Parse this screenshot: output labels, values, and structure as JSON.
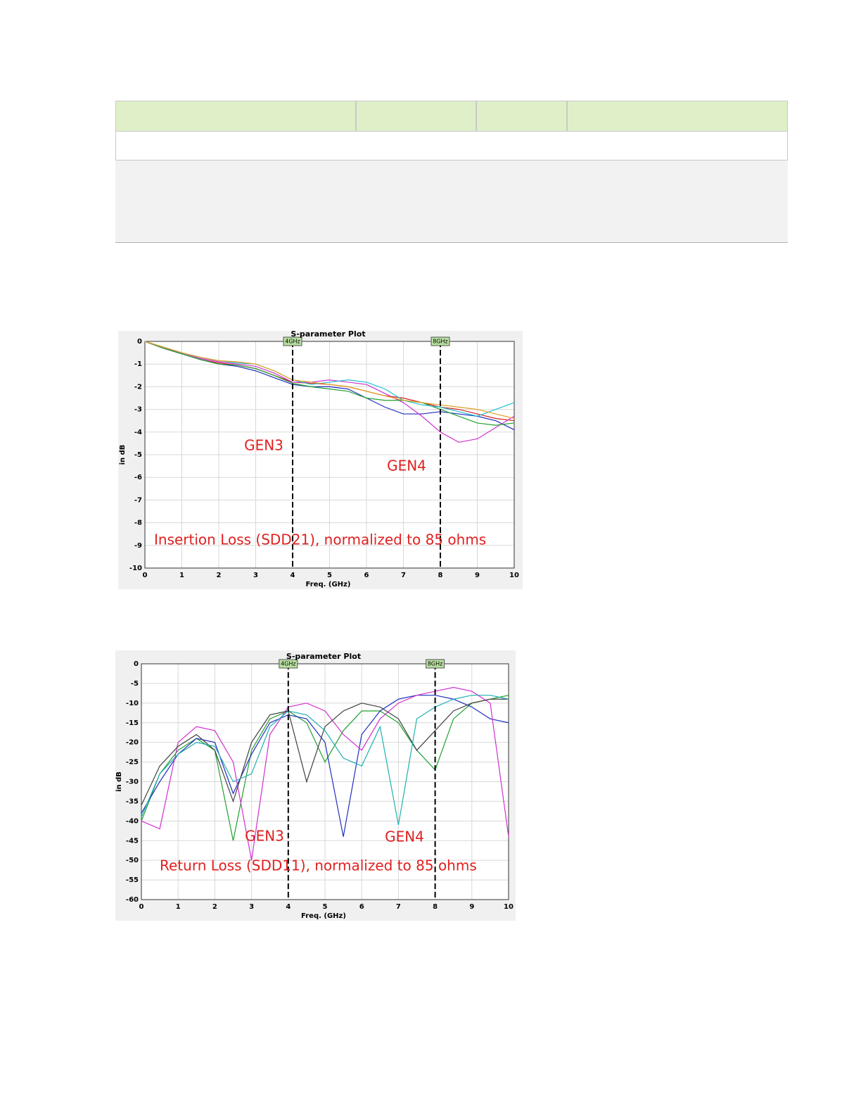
{
  "chart_data": [
    {
      "type": "line",
      "title": "S-parameter Plot",
      "xlabel": "Freq. (GHz)",
      "ylabel": "in dB",
      "xlim": [
        0,
        10
      ],
      "ylim": [
        -10,
        0
      ],
      "xticks": [
        0,
        1,
        2,
        3,
        4,
        5,
        6,
        7,
        8,
        9,
        10
      ],
      "yticks": [
        -10,
        -9,
        -8,
        -7,
        -6,
        -5,
        -4,
        -3,
        -2,
        -1,
        0
      ],
      "grid": true,
      "vlines": [
        {
          "value": 4,
          "label": "4GHz"
        },
        {
          "value": 8,
          "label": "8GHz"
        }
      ],
      "annotations": [
        "GEN3",
        "GEN4",
        "Insertion Loss (SDD21), normalized to 85 ohms"
      ],
      "x": [
        0,
        0.5,
        1,
        1.5,
        2,
        2.5,
        3,
        3.5,
        4,
        4.5,
        5,
        5.5,
        6,
        6.5,
        7,
        7.5,
        8,
        8.5,
        9,
        9.5,
        10
      ],
      "series": [
        {
          "color": "#d62020",
          "values": [
            0,
            -0.3,
            -0.55,
            -0.8,
            -0.95,
            -1.05,
            -1.2,
            -1.5,
            -1.8,
            -1.85,
            -1.9,
            -2.0,
            -2.2,
            -2.4,
            -2.5,
            -2.7,
            -2.9,
            -3.0,
            -3.2,
            -3.4,
            -3.5
          ]
        },
        {
          "color": "#2030c0",
          "values": [
            0,
            -0.3,
            -0.55,
            -0.8,
            -1.0,
            -1.1,
            -1.3,
            -1.6,
            -1.9,
            -2.0,
            -2.0,
            -2.1,
            -2.5,
            -2.9,
            -3.2,
            -3.2,
            -3.1,
            -3.2,
            -3.3,
            -3.5,
            -3.9
          ]
        },
        {
          "color": "#d030d0",
          "values": [
            0,
            -0.3,
            -0.5,
            -0.75,
            -0.9,
            -1.0,
            -1.1,
            -1.4,
            -1.8,
            -1.8,
            -1.7,
            -1.8,
            -1.9,
            -2.3,
            -2.7,
            -3.3,
            -4.0,
            -4.45,
            -4.3,
            -3.8,
            -3.3
          ]
        },
        {
          "color": "#20a030",
          "values": [
            0,
            -0.3,
            -0.55,
            -0.8,
            -1.0,
            -1.05,
            -1.2,
            -1.5,
            -1.85,
            -2.0,
            -2.1,
            -2.2,
            -2.5,
            -2.6,
            -2.6,
            -2.7,
            -3.0,
            -3.3,
            -3.6,
            -3.7,
            -3.6
          ]
        },
        {
          "color": "#20c0d0",
          "values": [
            0,
            -0.25,
            -0.5,
            -0.7,
            -0.85,
            -0.95,
            -1.0,
            -1.3,
            -1.7,
            -1.9,
            -1.8,
            -1.7,
            -1.8,
            -2.1,
            -2.6,
            -2.8,
            -2.9,
            -3.1,
            -3.3,
            -3.0,
            -2.7
          ]
        },
        {
          "color": "#e0a020",
          "values": [
            0,
            -0.25,
            -0.5,
            -0.7,
            -0.85,
            -0.9,
            -1.0,
            -1.3,
            -1.7,
            -1.8,
            -1.9,
            -2.0,
            -2.2,
            -2.4,
            -2.6,
            -2.7,
            -2.8,
            -2.9,
            -3.0,
            -3.2,
            -3.4
          ]
        }
      ]
    },
    {
      "type": "line",
      "title": "S-parameter Plot",
      "xlabel": "Freq. (GHz)",
      "ylabel": "in dB",
      "xlim": [
        0,
        10
      ],
      "ylim": [
        -60,
        0
      ],
      "xticks": [
        0,
        1,
        2,
        3,
        4,
        5,
        6,
        7,
        8,
        9,
        10
      ],
      "yticks": [
        -60,
        -55,
        -50,
        -45,
        -40,
        -35,
        -30,
        -25,
        -20,
        -15,
        -10,
        -5,
        0
      ],
      "grid": true,
      "vlines": [
        {
          "value": 4,
          "label": "4GHz"
        },
        {
          "value": 8,
          "label": "8GHz"
        }
      ],
      "annotations": [
        "GEN3",
        "GEN4",
        "Return Loss (SDD11), normalized to 85 ohms"
      ],
      "x": [
        0,
        0.5,
        1,
        1.5,
        2,
        2.5,
        3,
        3.5,
        4,
        4.5,
        5,
        5.5,
        6,
        6.5,
        7,
        7.5,
        8,
        8.5,
        9,
        9.5,
        10
      ],
      "series": [
        {
          "color": "#20a030",
          "values": [
            -40,
            -28,
            -22,
            -19,
            -22,
            -45,
            -22,
            -14,
            -12,
            -15,
            -25,
            -17,
            -12,
            -12,
            -15,
            -22,
            -27,
            -14,
            -10,
            -9,
            -8
          ]
        },
        {
          "color": "#2030c0",
          "values": [
            -38,
            -30,
            -23,
            -19,
            -20,
            -33,
            -23,
            -15,
            -13,
            -14,
            -20,
            -44,
            -18,
            -12,
            -9,
            -8,
            -8,
            -9,
            -11,
            -14,
            -15
          ]
        },
        {
          "color": "#d030d0",
          "values": [
            -40,
            -42,
            -20,
            -16,
            -17,
            -25,
            -50,
            -18,
            -11,
            -10,
            -12,
            -18,
            -22,
            -14,
            -10,
            -8,
            -7,
            -6,
            -7,
            -10,
            -44
          ]
        },
        {
          "color": "#404040",
          "values": [
            -36,
            -26,
            -21,
            -18,
            -22,
            -35,
            -20,
            -13,
            -12,
            -30,
            -16,
            -12,
            -10,
            -11,
            -14,
            -22,
            -17,
            -12,
            -10,
            -9,
            -9
          ]
        },
        {
          "color": "#20b0b0",
          "values": [
            -39,
            -28,
            -23,
            -20,
            -21,
            -30,
            -28,
            -16,
            -12,
            -13,
            -17,
            -24,
            -26,
            -16,
            -41,
            -14,
            -11,
            -9,
            -8,
            -8,
            -9
          ]
        }
      ]
    }
  ]
}
